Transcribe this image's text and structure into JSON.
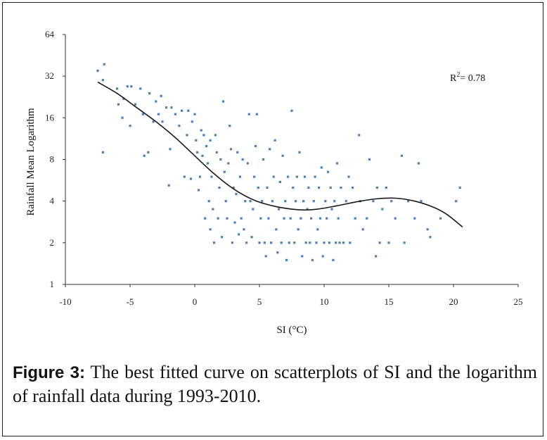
{
  "chart_data": {
    "type": "scatter",
    "xlabel": "SI (°C)",
    "ylabel": "Rainfall Mean Logarithm",
    "xlim": [
      -10,
      25
    ],
    "ylim": [
      1,
      64
    ],
    "yscale": "log2",
    "x_ticks": [
      -10,
      -5,
      0,
      5,
      10,
      15,
      20,
      25
    ],
    "y_ticks": [
      1,
      2,
      4,
      8,
      16,
      32,
      64
    ],
    "grid": false,
    "legend": "none",
    "annotation": {
      "base": "R",
      "sup": "2",
      "rest": "= 0.78"
    },
    "point_color": "#4a7fc1",
    "curve_color": "#1a1a1a",
    "points": [
      [
        -7.5,
        35
      ],
      [
        -7.0,
        39
      ],
      [
        -7.1,
        30
      ],
      [
        -7.1,
        9.0
      ],
      [
        -6.0,
        26
      ],
      [
        -5.9,
        20
      ],
      [
        -5.6,
        16
      ],
      [
        -5.5,
        22
      ],
      [
        -5.2,
        27
      ],
      [
        -5.0,
        14
      ],
      [
        -4.9,
        27
      ],
      [
        -4.6,
        20
      ],
      [
        -4.2,
        26
      ],
      [
        -4.0,
        17
      ],
      [
        -3.9,
        8.5
      ],
      [
        -3.6,
        9.0
      ],
      [
        -3.5,
        24
      ],
      [
        -3.2,
        15
      ],
      [
        -3.0,
        21
      ],
      [
        -2.8,
        17
      ],
      [
        -2.6,
        23
      ],
      [
        -2.5,
        15
      ],
      [
        -2.2,
        19
      ],
      [
        -2.0,
        5.2
      ],
      [
        -1.9,
        9.5
      ],
      [
        -1.8,
        19
      ],
      [
        -1.5,
        17
      ],
      [
        -1.2,
        14
      ],
      [
        -1.0,
        18
      ],
      [
        -0.8,
        6.0
      ],
      [
        -0.6,
        12
      ],
      [
        -0.5,
        18
      ],
      [
        -0.3,
        5.8
      ],
      [
        -0.2,
        15
      ],
      [
        0.0,
        17
      ],
      [
        0.1,
        11
      ],
      [
        0.2,
        9.0
      ],
      [
        0.3,
        4.8
      ],
      [
        0.4,
        6.0
      ],
      [
        0.5,
        13
      ],
      [
        0.6,
        8.5
      ],
      [
        0.7,
        12
      ],
      [
        0.8,
        3.0
      ],
      [
        0.9,
        10
      ],
      [
        1.0,
        7.5
      ],
      [
        1.1,
        4.0
      ],
      [
        1.2,
        2.5
      ],
      [
        1.2,
        11
      ],
      [
        1.3,
        6.0
      ],
      [
        1.4,
        3.5
      ],
      [
        1.5,
        2.0
      ],
      [
        1.6,
        12
      ],
      [
        1.7,
        9.0
      ],
      [
        1.8,
        3.0
      ],
      [
        1.9,
        5.0
      ],
      [
        2.0,
        8.0
      ],
      [
        2.1,
        2.2
      ],
      [
        2.2,
        21
      ],
      [
        2.3,
        6.5
      ],
      [
        2.4,
        4.0
      ],
      [
        2.5,
        3.0
      ],
      [
        2.6,
        7.5
      ],
      [
        2.7,
        14
      ],
      [
        2.8,
        9.5
      ],
      [
        2.9,
        2.0
      ],
      [
        3.0,
        5.0
      ],
      [
        3.1,
        2.8
      ],
      [
        3.2,
        4.5
      ],
      [
        3.3,
        9.0
      ],
      [
        3.4,
        2.3
      ],
      [
        3.5,
        6.0
      ],
      [
        3.6,
        3.0
      ],
      [
        3.7,
        8.0
      ],
      [
        3.8,
        2.5
      ],
      [
        3.9,
        4.0
      ],
      [
        4.0,
        2.0
      ],
      [
        4.1,
        7.5
      ],
      [
        4.2,
        17
      ],
      [
        4.3,
        4.0
      ],
      [
        4.4,
        2.2
      ],
      [
        4.5,
        3.5
      ],
      [
        4.6,
        6.0
      ],
      [
        4.7,
        10
      ],
      [
        4.8,
        17
      ],
      [
        4.9,
        5.0
      ],
      [
        5.0,
        2.0
      ],
      [
        5.1,
        3.0
      ],
      [
        5.2,
        4.0
      ],
      [
        5.3,
        8.0
      ],
      [
        5.4,
        2.0
      ],
      [
        5.5,
        1.6
      ],
      [
        5.6,
        5.0
      ],
      [
        5.7,
        3.0
      ],
      [
        5.8,
        9.5
      ],
      [
        5.9,
        2.0
      ],
      [
        6.0,
        4.0
      ],
      [
        6.1,
        6.0
      ],
      [
        6.2,
        11
      ],
      [
        6.3,
        2.5
      ],
      [
        6.4,
        1.7
      ],
      [
        6.5,
        3.5
      ],
      [
        6.6,
        5.5
      ],
      [
        6.7,
        2.0
      ],
      [
        6.8,
        8.5
      ],
      [
        6.9,
        3.0
      ],
      [
        7.0,
        4.0
      ],
      [
        7.1,
        1.5
      ],
      [
        7.2,
        6.0
      ],
      [
        7.3,
        2.0
      ],
      [
        7.4,
        3.0
      ],
      [
        7.5,
        18
      ],
      [
        7.6,
        5.0
      ],
      [
        7.7,
        2.0
      ],
      [
        7.8,
        4.0
      ],
      [
        7.9,
        6.0
      ],
      [
        8.0,
        2.5
      ],
      [
        8.1,
        9.0
      ],
      [
        8.2,
        3.0
      ],
      [
        8.3,
        1.6
      ],
      [
        8.4,
        4.0
      ],
      [
        8.5,
        6.0
      ],
      [
        8.6,
        2.0
      ],
      [
        8.7,
        3.5
      ],
      [
        8.8,
        5.0
      ],
      [
        8.9,
        2.0
      ],
      [
        9.0,
        3.0
      ],
      [
        9.1,
        1.5
      ],
      [
        9.2,
        4.0
      ],
      [
        9.3,
        6.0
      ],
      [
        9.4,
        2.0
      ],
      [
        9.5,
        2.5
      ],
      [
        9.6,
        5.0
      ],
      [
        9.7,
        3.0
      ],
      [
        9.8,
        7.0
      ],
      [
        9.9,
        1.6
      ],
      [
        10.0,
        2.0
      ],
      [
        10.1,
        4.0
      ],
      [
        10.2,
        3.0
      ],
      [
        10.3,
        6.5
      ],
      [
        10.4,
        2.0
      ],
      [
        10.5,
        5.0
      ],
      [
        10.6,
        3.5
      ],
      [
        10.7,
        1.5
      ],
      [
        10.8,
        4.0
      ],
      [
        10.9,
        2.0
      ],
      [
        11.0,
        7.5
      ],
      [
        11.1,
        3.0
      ],
      [
        11.2,
        2.0
      ],
      [
        11.3,
        5.0
      ],
      [
        11.5,
        2.0
      ],
      [
        11.7,
        4.0
      ],
      [
        11.9,
        6.0
      ],
      [
        12.0,
        2.0
      ],
      [
        12.2,
        5.0
      ],
      [
        12.4,
        3.0
      ],
      [
        12.7,
        12
      ],
      [
        12.8,
        4.0
      ],
      [
        13.0,
        2.5
      ],
      [
        13.3,
        3.0
      ],
      [
        13.5,
        8.0
      ],
      [
        13.8,
        4.0
      ],
      [
        14.0,
        1.6
      ],
      [
        14.1,
        5.0
      ],
      [
        14.3,
        2.0
      ],
      [
        14.5,
        3.5
      ],
      [
        14.8,
        5.0
      ],
      [
        15.0,
        2.0
      ],
      [
        15.2,
        4.0
      ],
      [
        15.5,
        3.0
      ],
      [
        16.0,
        8.5
      ],
      [
        16.2,
        2.0
      ],
      [
        16.5,
        4.0
      ],
      [
        17.0,
        3.0
      ],
      [
        17.3,
        7.5
      ],
      [
        17.5,
        4.0
      ],
      [
        18.0,
        2.5
      ],
      [
        18.2,
        2.2
      ],
      [
        20.2,
        4.0
      ],
      [
        20.5,
        5.0
      ],
      [
        19.0,
        3.0
      ]
    ],
    "fit_curve": [
      [
        -7.5,
        29
      ],
      [
        -6.0,
        24
      ],
      [
        -4.5,
        19
      ],
      [
        -3.0,
        15
      ],
      [
        -1.5,
        11.5
      ],
      [
        0.0,
        8.5
      ],
      [
        1.5,
        6.3
      ],
      [
        3.0,
        4.9
      ],
      [
        4.5,
        4.1
      ],
      [
        6.0,
        3.7
      ],
      [
        7.5,
        3.5
      ],
      [
        8.5,
        3.45
      ],
      [
        9.5,
        3.5
      ],
      [
        11.0,
        3.7
      ],
      [
        12.5,
        3.95
      ],
      [
        14.0,
        4.15
      ],
      [
        15.5,
        4.2
      ],
      [
        17.0,
        4.0
      ],
      [
        18.5,
        3.6
      ],
      [
        19.5,
        3.2
      ],
      [
        20.7,
        2.6
      ]
    ]
  },
  "caption": {
    "label": "Figure 3:",
    "text": " The best fitted curve on scatterplots of SI and the logarithm of rainfall data during 1993-2010."
  }
}
